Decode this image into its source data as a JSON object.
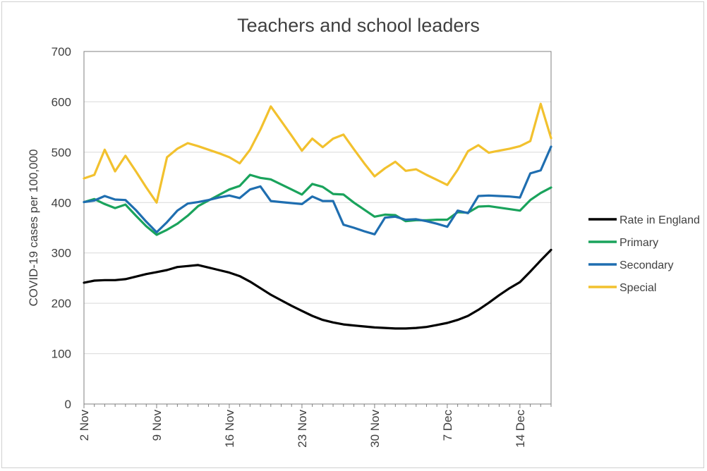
{
  "chart_data": {
    "type": "line",
    "title": "Teachers and school leaders",
    "xlabel": "",
    "ylabel": "COVID-19 cases per 100,000",
    "ylim": [
      0,
      700
    ],
    "yticks": [
      0,
      100,
      200,
      300,
      400,
      500,
      600,
      700
    ],
    "xlim": [
      0,
      45
    ],
    "xticks": [
      {
        "x": 0,
        "label": "2 Nov"
      },
      {
        "x": 7,
        "label": "9 Nov"
      },
      {
        "x": 14,
        "label": "16 Nov"
      },
      {
        "x": 21,
        "label": "23 Nov"
      },
      {
        "x": 28,
        "label": "30 Nov"
      },
      {
        "x": 35,
        "label": "7 Dec"
      },
      {
        "x": 42,
        "label": "14 Dec"
      }
    ],
    "grid": "horizontal",
    "legend_position": "right",
    "series": [
      {
        "name": "Rate in England",
        "color": "#000000",
        "points": [
          [
            0,
            241
          ],
          [
            1,
            245
          ],
          [
            2,
            246
          ],
          [
            3,
            246
          ],
          [
            4,
            248
          ],
          [
            5,
            253
          ],
          [
            6,
            258
          ],
          [
            7,
            262
          ],
          [
            8,
            266
          ],
          [
            9,
            272
          ],
          [
            10,
            274
          ],
          [
            11,
            276
          ],
          [
            12,
            271
          ],
          [
            13,
            266
          ],
          [
            14,
            261
          ],
          [
            15,
            254
          ],
          [
            16,
            243
          ],
          [
            17,
            230
          ],
          [
            18,
            217
          ],
          [
            19,
            206
          ],
          [
            20,
            195
          ],
          [
            21,
            185
          ],
          [
            22,
            175
          ],
          [
            23,
            167
          ],
          [
            24,
            162
          ],
          [
            25,
            158
          ],
          [
            26,
            156
          ],
          [
            27,
            154
          ],
          [
            28,
            152
          ],
          [
            29,
            151
          ],
          [
            30,
            150
          ],
          [
            31,
            150
          ],
          [
            32,
            151
          ],
          [
            33,
            153
          ],
          [
            34,
            157
          ],
          [
            35,
            161
          ],
          [
            36,
            167
          ],
          [
            37,
            175
          ],
          [
            38,
            187
          ],
          [
            39,
            201
          ],
          [
            40,
            216
          ],
          [
            41,
            230
          ],
          [
            42,
            242
          ],
          [
            43,
            263
          ],
          [
            44,
            285
          ],
          [
            45,
            306
          ]
        ]
      },
      {
        "name": "Primary",
        "color": "#1aa35c",
        "points": [
          [
            0,
            401
          ],
          [
            1,
            407
          ],
          [
            2,
            397
          ],
          [
            3,
            389
          ],
          [
            4,
            396
          ],
          [
            5,
            374
          ],
          [
            6,
            353
          ],
          [
            7,
            336
          ],
          [
            8,
            346
          ],
          [
            9,
            358
          ],
          [
            10,
            374
          ],
          [
            11,
            393
          ],
          [
            12,
            404
          ],
          [
            13,
            415
          ],
          [
            14,
            426
          ],
          [
            15,
            433
          ],
          [
            16,
            455
          ],
          [
            17,
            449
          ],
          [
            18,
            446
          ],
          [
            19,
            436
          ],
          [
            20,
            426
          ],
          [
            21,
            416
          ],
          [
            22,
            437
          ],
          [
            23,
            431
          ],
          [
            24,
            417
          ],
          [
            25,
            416
          ],
          [
            26,
            400
          ],
          [
            27,
            386
          ],
          [
            28,
            372
          ],
          [
            29,
            376
          ],
          [
            30,
            375
          ],
          [
            31,
            363
          ],
          [
            32,
            365
          ],
          [
            33,
            365
          ],
          [
            34,
            366
          ],
          [
            35,
            366
          ],
          [
            36,
            381
          ],
          [
            37,
            380
          ],
          [
            38,
            392
          ],
          [
            39,
            393
          ],
          [
            40,
            390
          ],
          [
            41,
            387
          ],
          [
            42,
            384
          ],
          [
            43,
            405
          ],
          [
            44,
            419
          ],
          [
            45,
            430
          ]
        ]
      },
      {
        "name": "Secondary",
        "color": "#1f6eb0",
        "points": [
          [
            0,
            401
          ],
          [
            1,
            404
          ],
          [
            2,
            413
          ],
          [
            3,
            406
          ],
          [
            4,
            405
          ],
          [
            5,
            385
          ],
          [
            6,
            362
          ],
          [
            7,
            341
          ],
          [
            8,
            361
          ],
          [
            9,
            384
          ],
          [
            10,
            398
          ],
          [
            11,
            401
          ],
          [
            12,
            405
          ],
          [
            13,
            410
          ],
          [
            14,
            414
          ],
          [
            15,
            409
          ],
          [
            16,
            426
          ],
          [
            17,
            432
          ],
          [
            18,
            403
          ],
          [
            19,
            401
          ],
          [
            20,
            399
          ],
          [
            21,
            397
          ],
          [
            22,
            412
          ],
          [
            23,
            403
          ],
          [
            24,
            403
          ],
          [
            25,
            356
          ],
          [
            26,
            350
          ],
          [
            27,
            343
          ],
          [
            28,
            337
          ],
          [
            29,
            370
          ],
          [
            30,
            372
          ],
          [
            31,
            366
          ],
          [
            32,
            367
          ],
          [
            33,
            363
          ],
          [
            34,
            358
          ],
          [
            35,
            352
          ],
          [
            36,
            384
          ],
          [
            37,
            379
          ],
          [
            38,
            413
          ],
          [
            39,
            414
          ],
          [
            40,
            413
          ],
          [
            41,
            412
          ],
          [
            42,
            410
          ],
          [
            43,
            458
          ],
          [
            44,
            464
          ],
          [
            45,
            511
          ]
        ]
      },
      {
        "name": "Special",
        "color": "#f2c12e",
        "points": [
          [
            0,
            448
          ],
          [
            1,
            455
          ],
          [
            2,
            505
          ],
          [
            3,
            462
          ],
          [
            4,
            493
          ],
          [
            5,
            462
          ],
          [
            6,
            430
          ],
          [
            7,
            400
          ],
          [
            8,
            490
          ],
          [
            9,
            507
          ],
          [
            10,
            518
          ],
          [
            11,
            512
          ],
          [
            12,
            505
          ],
          [
            13,
            498
          ],
          [
            14,
            490
          ],
          [
            15,
            478
          ],
          [
            16,
            505
          ],
          [
            17,
            545
          ],
          [
            18,
            591
          ],
          [
            19,
            562
          ],
          [
            20,
            533
          ],
          [
            21,
            503
          ],
          [
            22,
            527
          ],
          [
            23,
            510
          ],
          [
            24,
            527
          ],
          [
            25,
            535
          ],
          [
            26,
            506
          ],
          [
            27,
            478
          ],
          [
            28,
            452
          ],
          [
            29,
            468
          ],
          [
            30,
            481
          ],
          [
            31,
            463
          ],
          [
            32,
            466
          ],
          [
            33,
            455
          ],
          [
            34,
            445
          ],
          [
            35,
            435
          ],
          [
            36,
            465
          ],
          [
            37,
            502
          ],
          [
            38,
            514
          ],
          [
            39,
            499
          ],
          [
            40,
            503
          ],
          [
            41,
            507
          ],
          [
            42,
            512
          ],
          [
            43,
            522
          ],
          [
            44,
            596
          ],
          [
            45,
            528
          ]
        ]
      }
    ]
  }
}
